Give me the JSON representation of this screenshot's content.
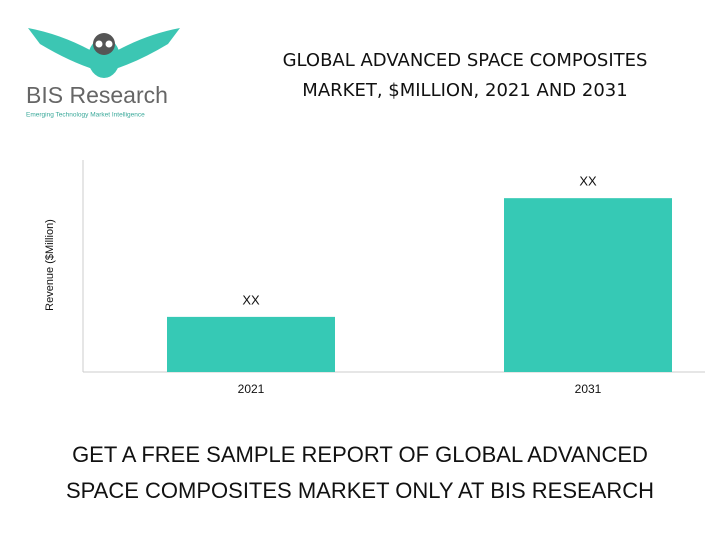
{
  "logo": {
    "name": "BIS Research",
    "tagline": "Emerging Technology Market Intelligence"
  },
  "chart_data": {
    "type": "bar",
    "title": [
      "GLOBAL ADVANCED SPACE COMPOSITES",
      "MARKET, $MILLION, 2021 AND 2031"
    ],
    "y_label": "Revenue ($Million)",
    "categories": [
      "2021",
      "2031"
    ],
    "values": [
      26,
      82
    ],
    "value_labels": [
      "XX",
      "XX"
    ],
    "color": "#36c9b5",
    "ylim": [
      0,
      100
    ]
  },
  "footer": [
    "GET A FREE SAMPLE REPORT OF GLOBAL ADVANCED",
    "SPACE COMPOSITES MARKET ONLY AT BIS RESEARCH"
  ]
}
